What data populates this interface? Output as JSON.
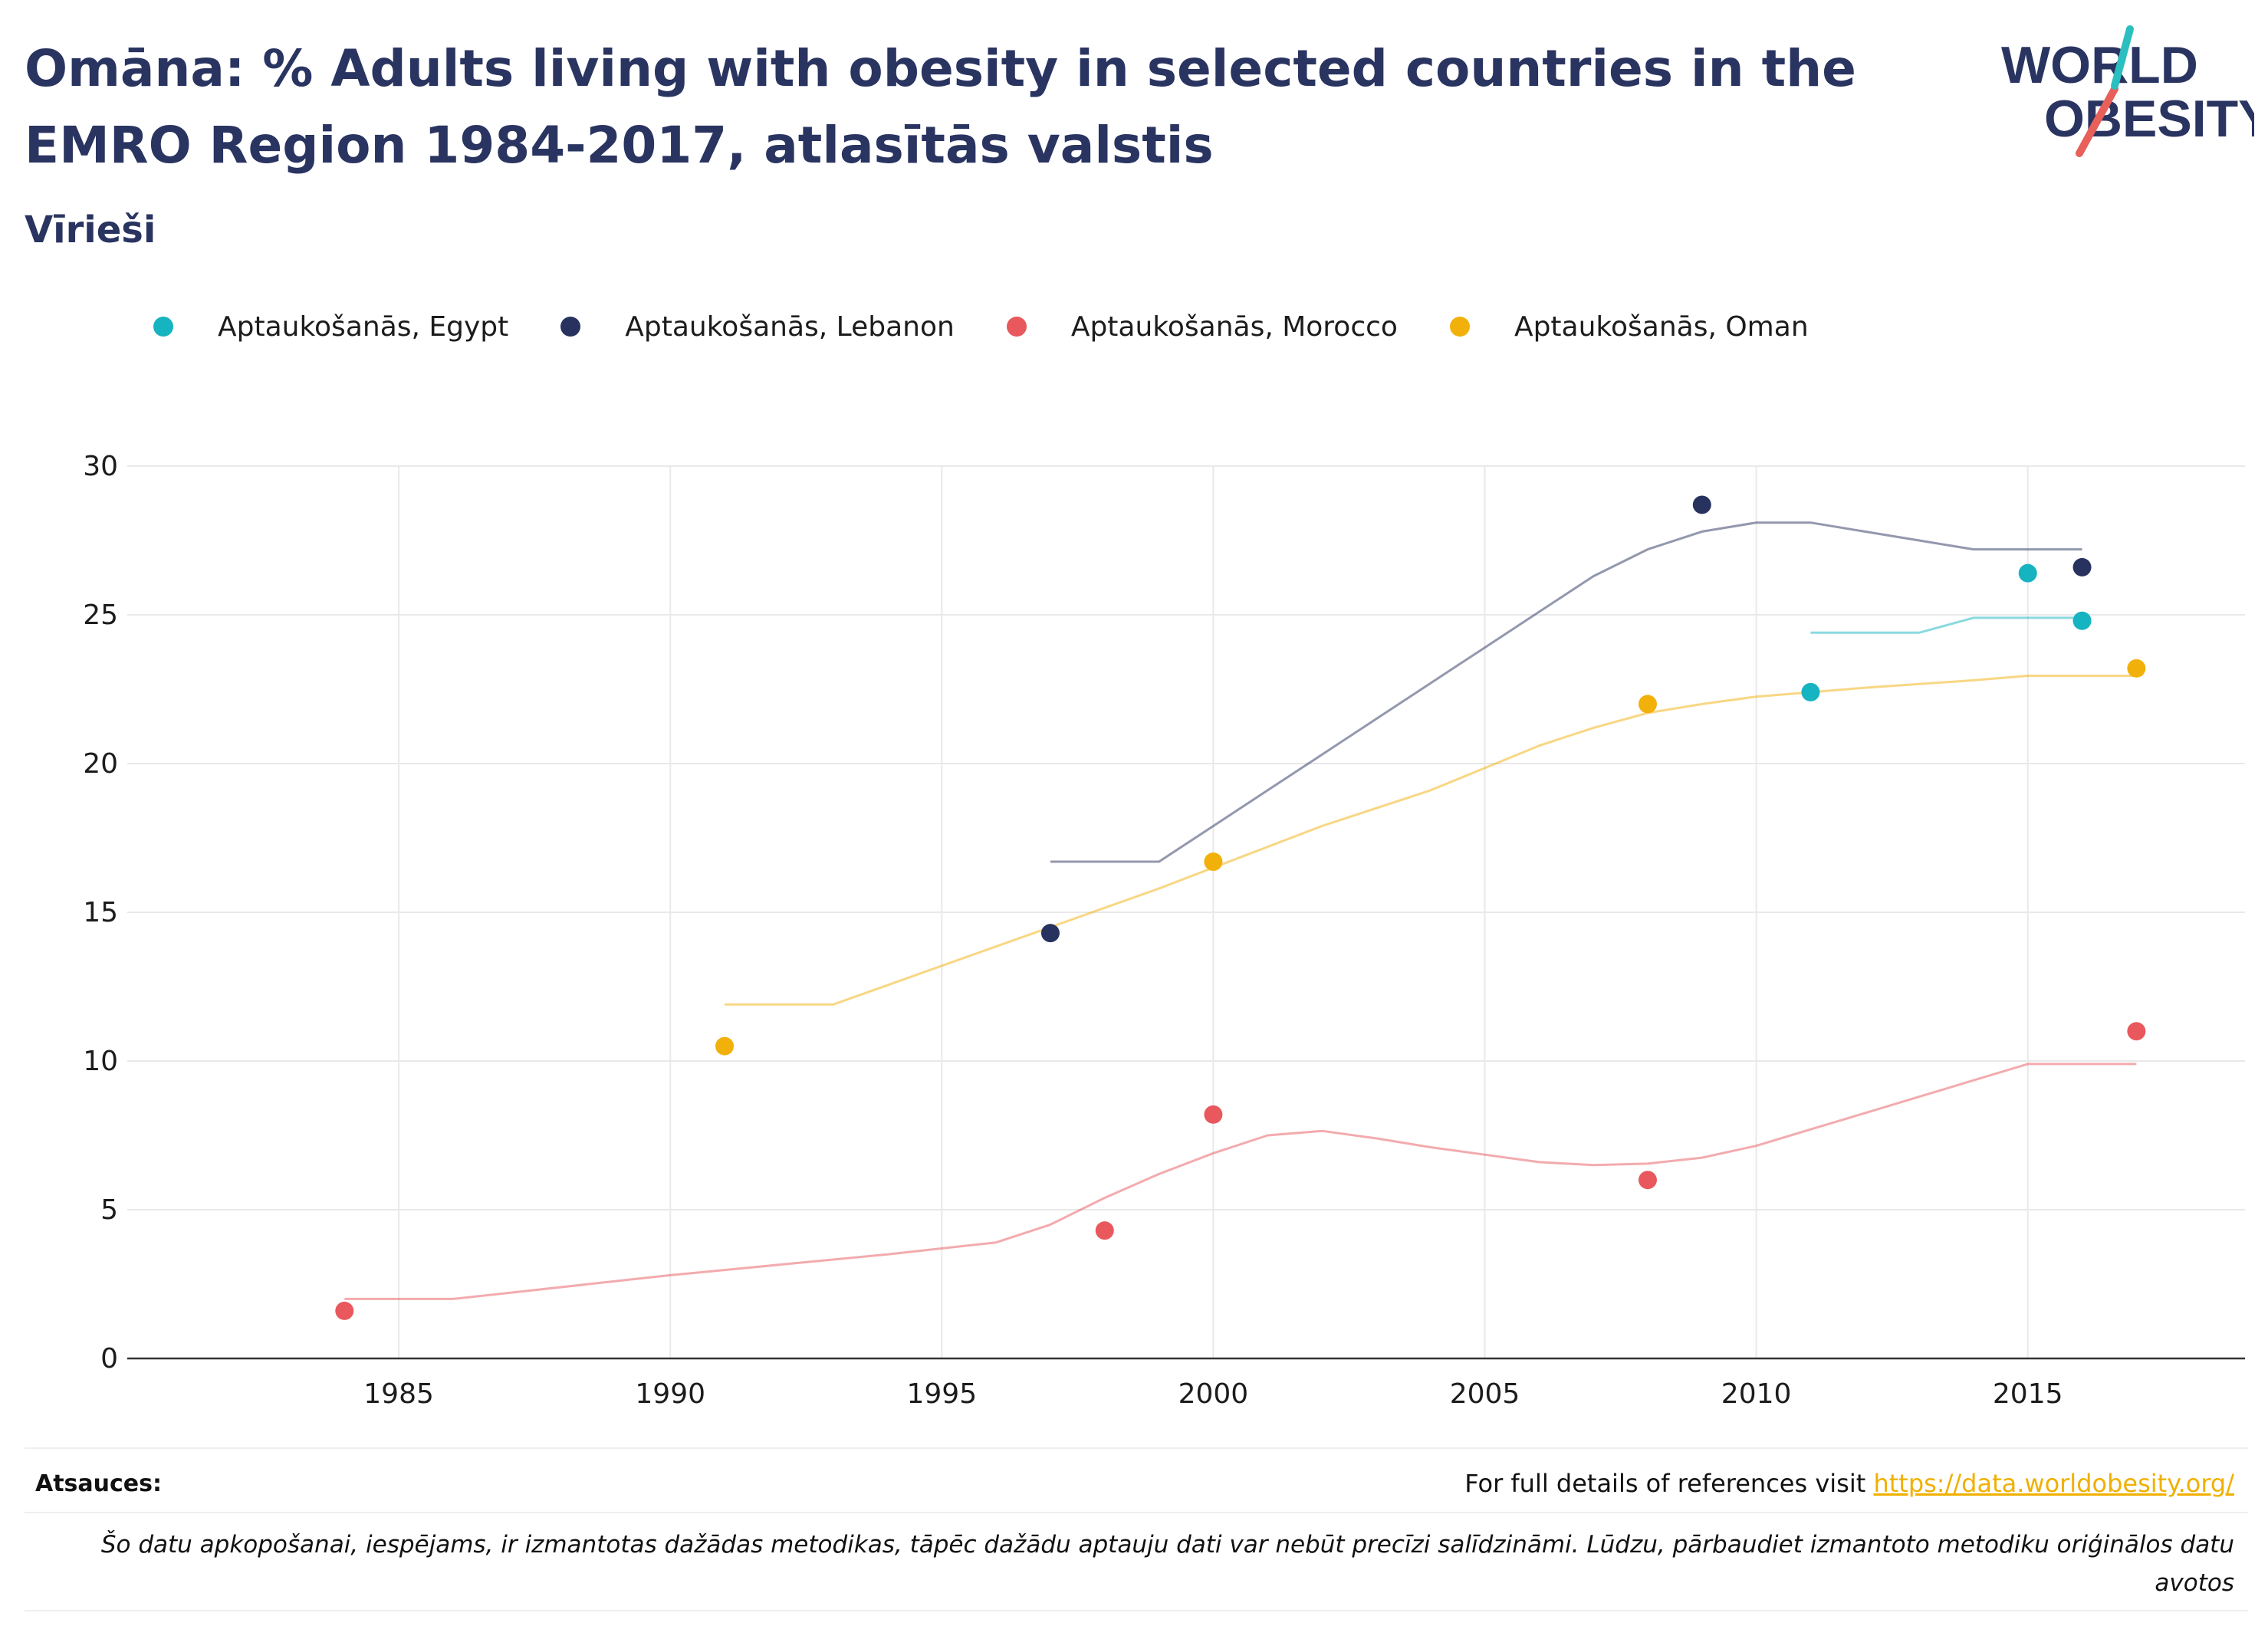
{
  "header": {
    "title": "Omāna: % Adults living with obesity in selected countries in the EMRO Region 1984-2017, atlasītās valstis",
    "subtitle": "Vīrieši"
  },
  "logo": {
    "line1": "WORLD",
    "line2": "OBESITY",
    "accent_teal": "#2bbfbf",
    "accent_red": "#e8605a"
  },
  "footer": {
    "sources_label": "Atsauces:",
    "sources_text": "For full details of references visit ",
    "sources_link": "https://data.worldobesity.org/",
    "note": "Šo datu apkopošanai, iespējams, ir izmantotas dažādas metodikas, tāpēc dažādu aptauju dati var nebūt precīzi salīdzināmi. Lūdzu, pārbaudiet izmantoto metodiku oriģinālos datu avotos"
  },
  "chart_data": {
    "type": "scatter",
    "title": "Omāna: % Adults living with obesity in selected countries in the EMRO Region 1984-2017, atlasītās valstis",
    "subtitle": "Vīrieši",
    "xlabel": "",
    "ylabel": "",
    "xlim": [
      1980,
      2019
    ],
    "ylim": [
      0,
      30
    ],
    "x_ticks": [
      1985,
      1990,
      1995,
      2000,
      2005,
      2010,
      2015
    ],
    "y_ticks": [
      0,
      5,
      10,
      15,
      20,
      25,
      30
    ],
    "grid": true,
    "legend_position": "top-left",
    "series": [
      {
        "name": "Aptaukošanās, Egypt",
        "color": "#16b3c0",
        "points": [
          [
            2011,
            22.4
          ],
          [
            2015,
            26.4
          ],
          [
            2016,
            24.8
          ]
        ],
        "trend": [
          [
            2011,
            24.4
          ],
          [
            2012,
            24.4
          ],
          [
            2013,
            24.4
          ],
          [
            2014,
            24.9
          ],
          [
            2015,
            24.9
          ],
          [
            2016,
            24.9
          ]
        ]
      },
      {
        "name": "Aptaukošanās, Lebanon",
        "color": "#27325e",
        "points": [
          [
            1997,
            14.3
          ],
          [
            2009,
            28.7
          ],
          [
            2016,
            26.6
          ]
        ],
        "trend": [
          [
            1997,
            16.7
          ],
          [
            1998,
            16.7
          ],
          [
            1999,
            16.7
          ],
          [
            2000,
            17.9
          ],
          [
            2001,
            19.1
          ],
          [
            2002,
            20.3
          ],
          [
            2003,
            21.5
          ],
          [
            2004,
            22.7
          ],
          [
            2005,
            23.9
          ],
          [
            2006,
            25.1
          ],
          [
            2007,
            26.3
          ],
          [
            2008,
            27.2
          ],
          [
            2009,
            27.8
          ],
          [
            2010,
            28.1
          ],
          [
            2011,
            28.1
          ],
          [
            2012,
            27.8
          ],
          [
            2013,
            27.5
          ],
          [
            2014,
            27.2
          ],
          [
            2015,
            27.2
          ],
          [
            2016,
            27.2
          ]
        ]
      },
      {
        "name": "Aptaukošanās, Morocco",
        "color": "#e8585d",
        "points": [
          [
            1984,
            1.6
          ],
          [
            1998,
            4.3
          ],
          [
            2000,
            8.2
          ],
          [
            2008,
            6.0
          ],
          [
            2017,
            11.0
          ]
        ],
        "trend": [
          [
            1984,
            2.0
          ],
          [
            1985,
            2.0
          ],
          [
            1986,
            2.0
          ],
          [
            1990,
            2.8
          ],
          [
            1994,
            3.5
          ],
          [
            1996,
            3.9
          ],
          [
            1997,
            4.5
          ],
          [
            1998,
            5.4
          ],
          [
            1999,
            6.2
          ],
          [
            2000,
            6.9
          ],
          [
            2001,
            7.5
          ],
          [
            2002,
            7.65
          ],
          [
            2003,
            7.4
          ],
          [
            2004,
            7.1
          ],
          [
            2005,
            6.85
          ],
          [
            2006,
            6.6
          ],
          [
            2007,
            6.5
          ],
          [
            2008,
            6.55
          ],
          [
            2009,
            6.75
          ],
          [
            2010,
            7.15
          ],
          [
            2011,
            7.7
          ],
          [
            2012,
            8.25
          ],
          [
            2013,
            8.8
          ],
          [
            2014,
            9.35
          ],
          [
            2015,
            9.9
          ],
          [
            2016,
            9.9
          ],
          [
            2017,
            9.9
          ]
        ]
      },
      {
        "name": "Aptaukošanās, Oman",
        "color": "#f2b00a",
        "points": [
          [
            1991,
            10.5
          ],
          [
            2000,
            16.7
          ],
          [
            2008,
            22.0
          ],
          [
            2017,
            23.2
          ]
        ],
        "trend": [
          [
            1991,
            11.9
          ],
          [
            1992,
            11.9
          ],
          [
            1993,
            11.9
          ],
          [
            1995,
            13.2
          ],
          [
            1997,
            14.5
          ],
          [
            1999,
            15.8
          ],
          [
            2000,
            16.5
          ],
          [
            2002,
            17.9
          ],
          [
            2004,
            19.1
          ],
          [
            2006,
            20.6
          ],
          [
            2007,
            21.2
          ],
          [
            2008,
            21.7
          ],
          [
            2009,
            22.0
          ],
          [
            2010,
            22.25
          ],
          [
            2012,
            22.55
          ],
          [
            2014,
            22.8
          ],
          [
            2015,
            22.95
          ],
          [
            2016,
            22.95
          ],
          [
            2017,
            22.95
          ]
        ]
      }
    ]
  }
}
